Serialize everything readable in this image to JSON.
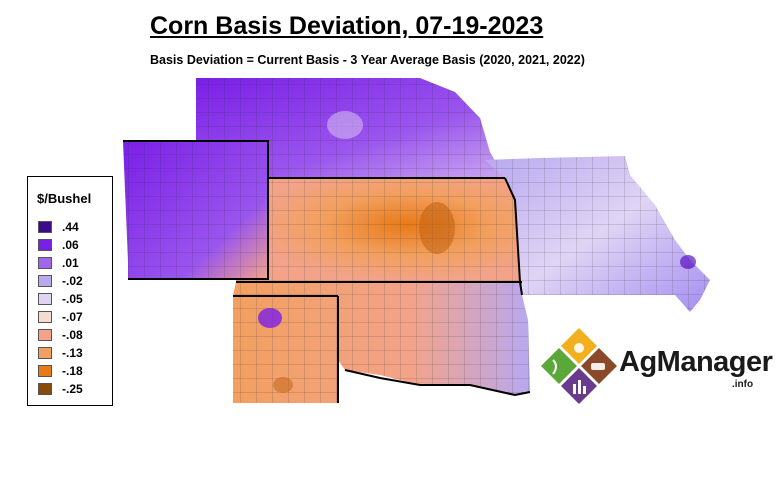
{
  "title": "Corn Basis Deviation, 07-19-2023",
  "subtitle": "Basis Deviation = Current Basis - 3 Year Average Basis (2020, 2021, 2022)",
  "legend": {
    "title": "$/Bushel",
    "items": [
      {
        "label": ".44",
        "color": "#3d0a8c"
      },
      {
        "label": ".06",
        "color": "#7a1fe6"
      },
      {
        "label": ".01",
        "color": "#a066ee"
      },
      {
        "label": "-.02",
        "color": "#b8a8f0"
      },
      {
        "label": "-.05",
        "color": "#e0d4f5"
      },
      {
        "label": "-.07",
        "color": "#f5dcd0"
      },
      {
        "label": "-.08",
        "color": "#f2a38a"
      },
      {
        "label": "-.13",
        "color": "#f2a060"
      },
      {
        "label": "-.18",
        "color": "#e87a18"
      },
      {
        "label": "-.25",
        "color": "#8a4a0a"
      }
    ]
  },
  "logo": {
    "text": "AgManager",
    "suffix": ".info"
  }
}
